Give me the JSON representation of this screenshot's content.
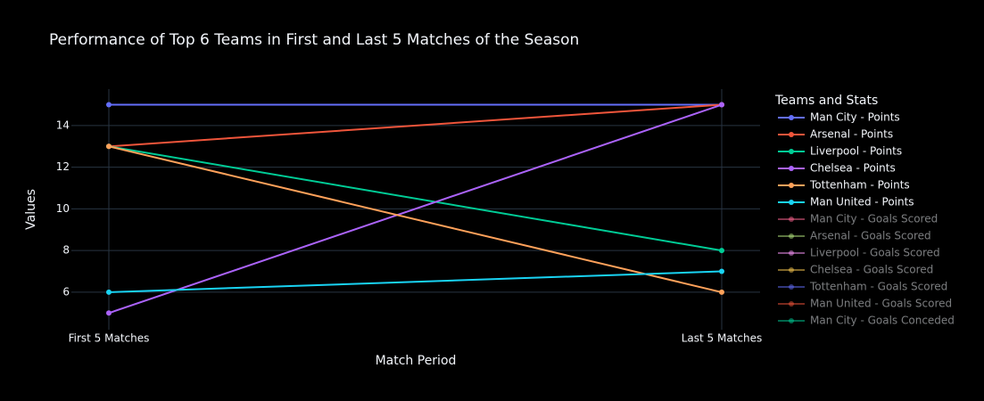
{
  "chart_data": {
    "type": "line",
    "title": "Performance of Top 6 Teams in First and Last 5 Matches of the Season",
    "x_label": "Match Period",
    "y_label": "Values",
    "legend_title": "Teams and Stats",
    "categories": [
      "First 5 Matches",
      "Last 5 Matches"
    ],
    "ylim": [
      4.2,
      15.75
    ],
    "yticks": [
      6,
      8,
      10,
      12,
      14
    ],
    "grid": true,
    "series": [
      {
        "name": "Man City - Points",
        "color": "#636efa",
        "values": [
          15,
          15
        ]
      },
      {
        "name": "Arsenal - Points",
        "color": "#EF553B",
        "values": [
          13,
          15
        ]
      },
      {
        "name": "Liverpool - Points",
        "color": "#00cc96",
        "values": [
          13,
          8
        ]
      },
      {
        "name": "Chelsea - Points",
        "color": "#ab63fa",
        "values": [
          5,
          15
        ]
      },
      {
        "name": "Tottenham - Points",
        "color": "#FFA15A",
        "values": [
          13,
          6
        ]
      },
      {
        "name": "Man United - Points",
        "color": "#19d3f3",
        "values": [
          6,
          7
        ]
      },
      {
        "name": "Man City - Goals Scored",
        "color": "#FF6692",
        "visible": false,
        "values": [
          null,
          null
        ]
      },
      {
        "name": "Arsenal - Goals Scored",
        "color": "#B6E880",
        "visible": false,
        "values": [
          null,
          null
        ]
      },
      {
        "name": "Liverpool - Goals Scored",
        "color": "#FF97FF",
        "visible": false,
        "values": [
          null,
          null
        ]
      },
      {
        "name": "Chelsea - Goals Scored",
        "color": "#FECB52",
        "visible": false,
        "values": [
          null,
          null
        ]
      },
      {
        "name": "Tottenham - Goals Scored",
        "color": "#636efa",
        "visible": false,
        "values": [
          null,
          null
        ]
      },
      {
        "name": "Man United - Goals Scored",
        "color": "#EF553B",
        "visible": false,
        "values": [
          null,
          null
        ]
      },
      {
        "name": "Man City - Goals Conceded",
        "color": "#00cc96",
        "visible": false,
        "values": [
          null,
          null
        ]
      }
    ]
  }
}
